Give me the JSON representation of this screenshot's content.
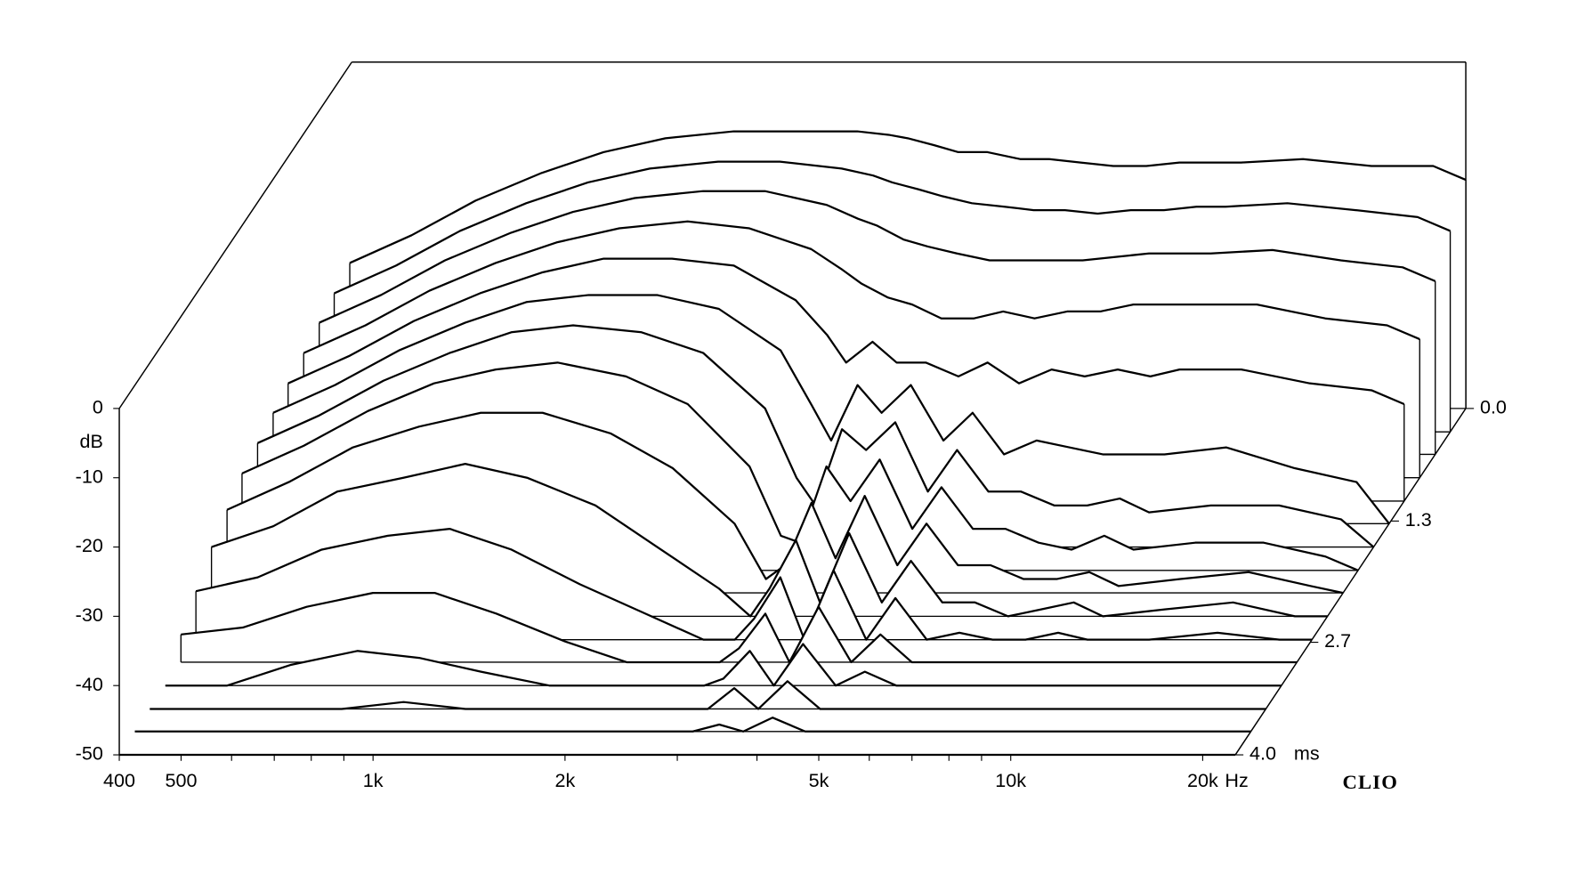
{
  "chart_data": {
    "type": "waterfall",
    "brand": "CLIO",
    "x_unit": "Hz",
    "y_unit": "dB",
    "z_unit": "ms",
    "x": [
      400,
      500,
      630,
      800,
      1000,
      1250,
      1600,
      2000,
      2500,
      2800,
      3000,
      3300,
      3600,
      4000,
      4500,
      5000,
      5600,
      6300,
      7100,
      8000,
      9000,
      10000,
      12500,
      16000,
      20000,
      22500
    ],
    "xlim": [
      400,
      22500
    ],
    "log_x": true,
    "xticks": [
      400,
      500,
      {
        "value": 1000,
        "label": "1k"
      },
      {
        "value": 2000,
        "label": "2k"
      },
      {
        "value": 5000,
        "label": "5k"
      },
      {
        "value": 10000,
        "label": "10k"
      },
      {
        "value": 20000,
        "label": "20k"
      }
    ],
    "xminor": [
      600,
      700,
      800,
      900,
      3000,
      4000,
      6000,
      7000,
      8000,
      9000
    ],
    "ylim": [
      -50,
      0
    ],
    "yticks": [
      0,
      -10,
      -20,
      -30,
      -40,
      -50
    ],
    "zlim": [
      0,
      4
    ],
    "zticks": [
      {
        "value": 0,
        "label": "0.0"
      },
      1.3,
      2.7,
      {
        "value": 4,
        "label": "4.0"
      }
    ],
    "color": "#000000",
    "times": [
      0,
      0.27,
      0.53,
      0.8,
      1.07,
      1.33,
      1.6,
      1.87,
      2.13,
      2.4,
      2.67,
      2.93,
      3.2,
      3.47,
      3.73,
      4
    ],
    "series": [
      {
        "values": [
          -29,
          -25,
          -20,
          -16,
          -13,
          -11,
          -10,
          -10,
          -10,
          -10.5,
          -11,
          -12,
          -13,
          -13,
          -14,
          -14,
          -14.5,
          -15,
          -15,
          -14.5,
          -14.5,
          -14.5,
          -14,
          -15,
          -15,
          -17
        ]
      },
      {
        "values": [
          -30,
          -26,
          -21,
          -17,
          -14,
          -12,
          -11,
          -11,
          -12,
          -13,
          -14,
          -15,
          -16,
          -17,
          -17.5,
          -18,
          -18,
          -18.5,
          -18,
          -18,
          -17.5,
          -17.5,
          -17,
          -18,
          -19,
          -21
        ]
      },
      {
        "values": [
          -31,
          -27,
          -22,
          -18,
          -15,
          -13,
          -12,
          -12,
          -14,
          -16,
          -17,
          -19,
          -20,
          -21,
          -22,
          -22,
          -22,
          -22,
          -21.5,
          -21,
          -21,
          -21,
          -20.5,
          -22,
          -23,
          -25
        ]
      },
      {
        "values": [
          -32,
          -28,
          -23,
          -19,
          -16,
          -14,
          -13,
          -14,
          -17,
          -20,
          -22,
          -24,
          -25,
          -27,
          -27,
          -26,
          -27,
          -26,
          -26,
          -25,
          -25,
          -25,
          -25,
          -27,
          -28,
          -30
        ]
      },
      {
        "values": [
          -33,
          -29,
          -24,
          -20,
          -17,
          -15,
          -15,
          -16,
          -21,
          -26,
          -30,
          -27,
          -30,
          -30,
          -32,
          -30,
          -33,
          -31,
          -32,
          -31,
          -32,
          -31,
          -31,
          -33,
          -34,
          -36
        ]
      },
      {
        "values": [
          -34,
          -30,
          -25,
          -21,
          -18,
          -17,
          -17,
          -19,
          -25,
          -33,
          -38,
          -30,
          -34,
          -30,
          -38,
          -34,
          -40,
          -38,
          -39,
          -40,
          -40,
          -40,
          -39,
          -42,
          -44,
          -50
        ]
      },
      {
        "values": [
          -35,
          -31,
          -26,
          -22,
          -19,
          -18,
          -19,
          -22,
          -30,
          -40,
          -44,
          -33,
          -36,
          -32,
          -42,
          -36,
          -42,
          -42,
          -44,
          -44,
          -43,
          -45,
          -44,
          -44,
          -46,
          -50
        ]
      },
      {
        "values": [
          -36,
          -32,
          -27,
          -23,
          -21,
          -20,
          -22,
          -26,
          -35,
          -45,
          -46,
          -35,
          -40,
          -34,
          -44,
          -38,
          -44,
          -44,
          -46,
          -47,
          -45,
          -47,
          -46,
          -46,
          -48,
          -50
        ]
      },
      {
        "values": [
          -38,
          -34,
          -29,
          -26,
          -24,
          -24,
          -27,
          -32,
          -40,
          -48,
          -46,
          -37,
          -45,
          -36,
          -46,
          -40,
          -46,
          -46,
          -48,
          -48,
          -47,
          -49,
          -48,
          -47,
          -49,
          -50
        ]
      },
      {
        "values": [
          -40,
          -37,
          -32,
          -30,
          -28,
          -30,
          -34,
          -40,
          -46,
          -50,
          -46,
          -39,
          -48,
          -38,
          -48,
          -42,
          -48,
          -48,
          -50,
          -49,
          -48,
          -50,
          -49,
          -48,
          -50,
          -50
        ]
      },
      {
        "values": [
          -43,
          -41,
          -37,
          -35,
          -34,
          -37,
          -42,
          -46,
          -50,
          -50,
          -47,
          -41,
          -50,
          -40,
          -50,
          -44,
          -50,
          -49,
          -50,
          -50,
          -49,
          -50,
          -50,
          -49,
          -50,
          -50
        ]
      },
      {
        "values": [
          -46,
          -45,
          -42,
          -40,
          -40,
          -43,
          -47,
          -50,
          -50,
          -50,
          -48,
          -43,
          -50,
          -42,
          -50,
          -46,
          -50,
          -50,
          -50,
          -50,
          -50,
          -50,
          -50,
          -50,
          -50,
          -50
        ]
      },
      {
        "values": [
          -50,
          -50,
          -47,
          -45,
          -46,
          -48,
          -50,
          -50,
          -50,
          -50,
          -49,
          -45,
          -50,
          -44,
          -50,
          -48,
          -50,
          -50,
          -50,
          -50,
          -50,
          -50,
          -50,
          -50,
          -50,
          -50
        ]
      },
      {
        "values": [
          -50,
          -50,
          -50,
          -50,
          -49,
          -50,
          -50,
          -50,
          -50,
          -50,
          -50,
          -47,
          -50,
          -46,
          -50,
          -50,
          -50,
          -50,
          -50,
          -50,
          -50,
          -50,
          -50,
          -50,
          -50,
          -50
        ]
      },
      {
        "values": [
          -50,
          -50,
          -50,
          -50,
          -50,
          -50,
          -50,
          -50,
          -50,
          -50,
          -50,
          -49,
          -50,
          -48,
          -50,
          -50,
          -50,
          -50,
          -50,
          -50,
          -50,
          -50,
          -50,
          -50,
          -50,
          -50
        ]
      },
      {
        "values": [
          -50,
          -50,
          -50,
          -50,
          -50,
          -50,
          -50,
          -50,
          -50,
          -50,
          -50,
          -50,
          -50,
          -50,
          -50,
          -50,
          -50,
          -50,
          -50,
          -50,
          -50,
          -50,
          -50,
          -50,
          -50,
          -50
        ]
      }
    ]
  }
}
